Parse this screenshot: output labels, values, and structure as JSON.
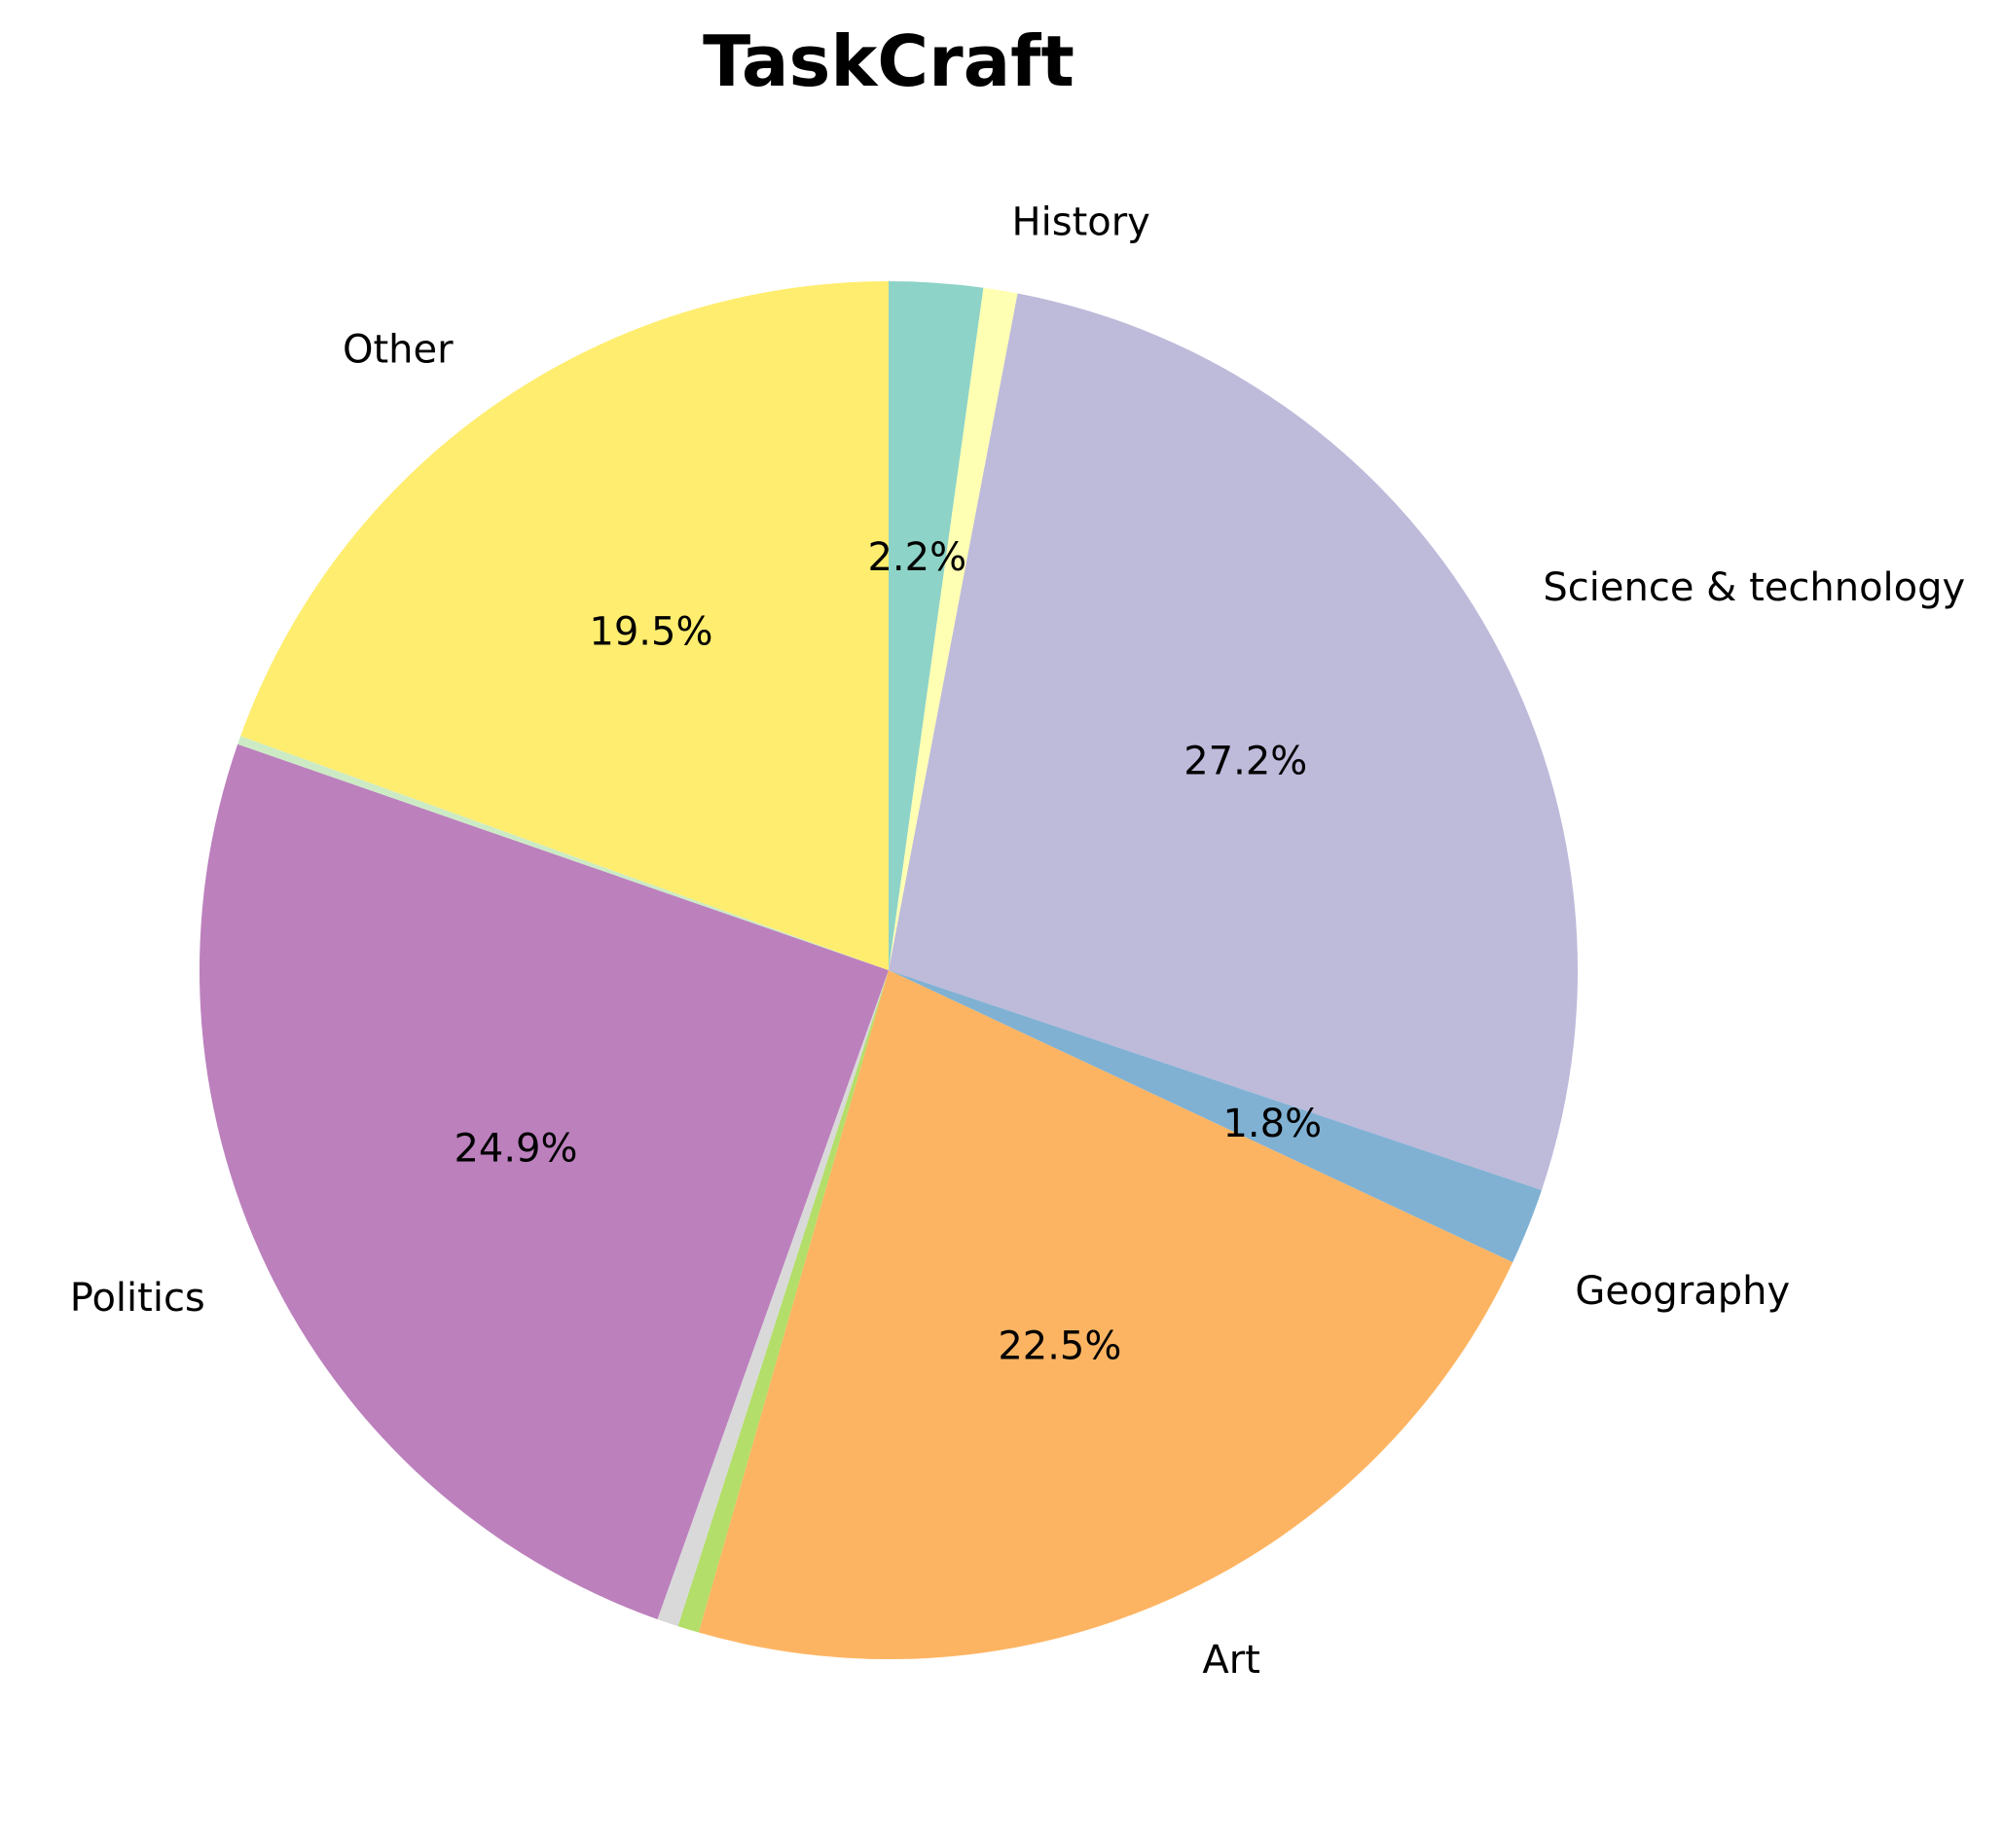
{
  "chart_data": {
    "type": "pie",
    "title": "TaskCraft",
    "start_angle_deg": 90,
    "direction": "clockwise",
    "slices": [
      {
        "label": "",
        "value": 2.2,
        "pct_label": "2.2%",
        "color": "#8dd3c7"
      },
      {
        "label": "History",
        "value": 0.8,
        "pct_label": "",
        "color": "#ffffb3"
      },
      {
        "label": "Science & technology",
        "value": 27.2,
        "pct_label": "27.2%",
        "color": "#bebada"
      },
      {
        "label": "",
        "value": 1.8,
        "pct_label": "1.8%",
        "color": "#80b1d3"
      },
      {
        "label": "Geography",
        "value": 0,
        "pct_label": "",
        "color": "#fb8072"
      },
      {
        "label": "Art",
        "value": 22.5,
        "pct_label": "22.5%",
        "color": "#fdb462"
      },
      {
        "label": "",
        "value": 0.5,
        "pct_label": "",
        "color": "#b3de69"
      },
      {
        "label": "",
        "value": 0,
        "pct_label": "",
        "color": "#fccde5"
      },
      {
        "label": "",
        "value": 0.5,
        "pct_label": "",
        "color": "#d9d9d9"
      },
      {
        "label": "Politics",
        "value": 24.9,
        "pct_label": "24.9%",
        "color": "#bc80bd"
      },
      {
        "label": "",
        "value": 0.2,
        "pct_label": "",
        "color": "#ccebc5"
      },
      {
        "label": "Other",
        "value": 19.5,
        "pct_label": "19.5%",
        "color": "#ffed6f"
      }
    ]
  }
}
